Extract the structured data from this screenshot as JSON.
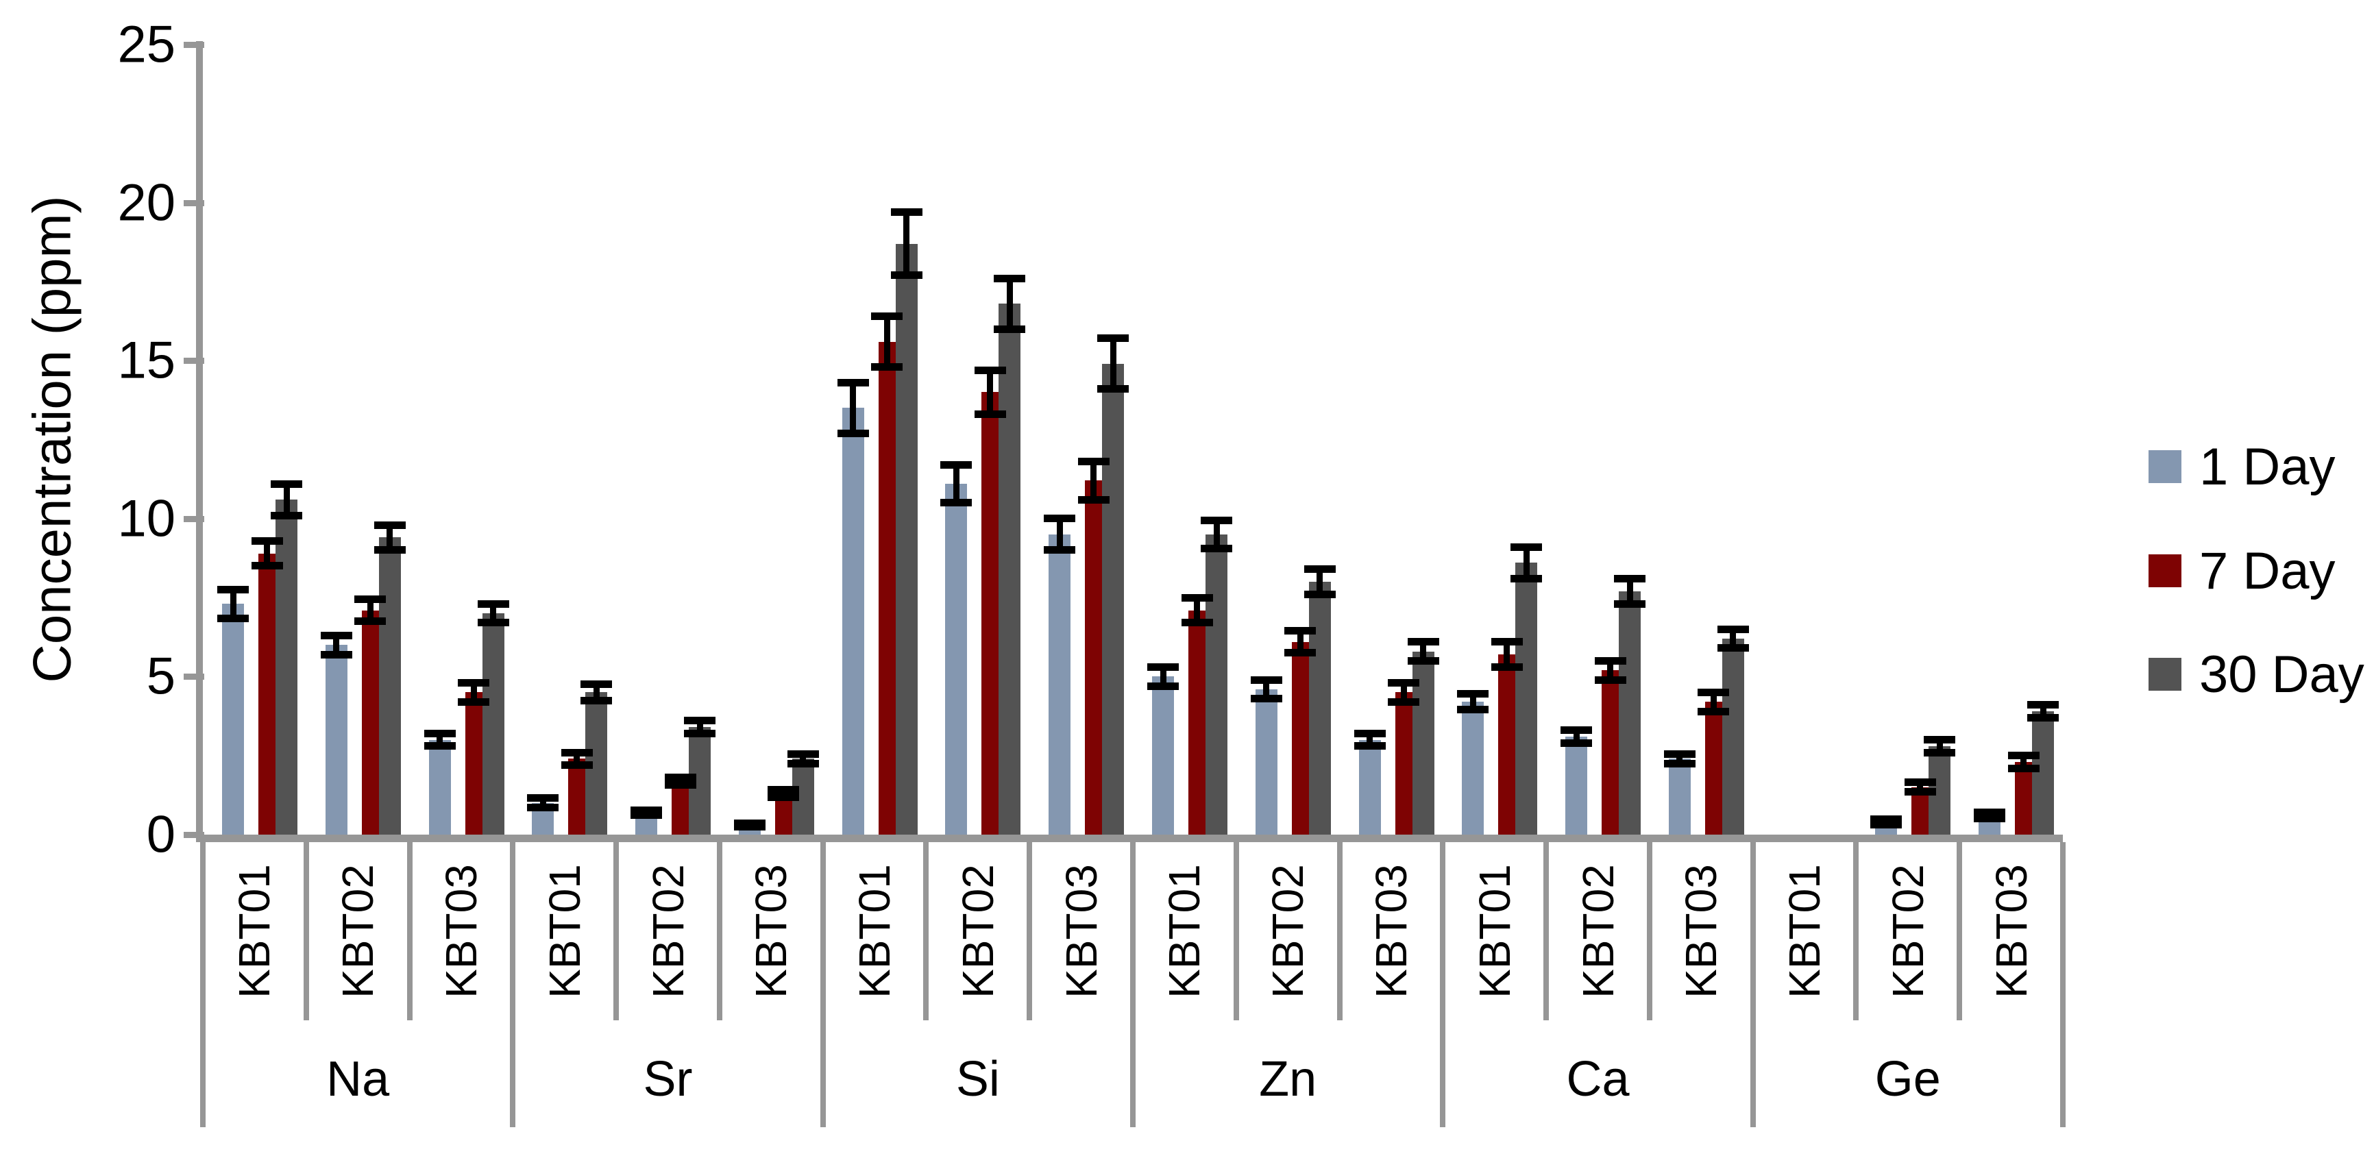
{
  "colors": {
    "axis": "#969696",
    "error_bar": "#000000",
    "background": "#FFFFFF",
    "text": "#000000"
  },
  "chart_data": {
    "type": "bar",
    "title": "",
    "xlabel": "",
    "ylabel": "Concentration (ppm)",
    "ylim": [
      0,
      25
    ],
    "yticks": [
      0,
      5,
      10,
      15,
      20,
      25
    ],
    "grid": false,
    "legend_position": "right-outside",
    "error_bars": true,
    "groups": [
      "Na",
      "Sr",
      "Si",
      "Zn",
      "Ca",
      "Ge"
    ],
    "subcategories": [
      "KBT01",
      "KBT02",
      "KBT03"
    ],
    "series": [
      {
        "name": "1 Day",
        "color": "#8497B0",
        "values": [
          [
            7.3,
            6.0,
            3.0
          ],
          [
            1.0,
            0.7,
            0.3
          ],
          [
            13.5,
            11.1,
            9.5
          ],
          [
            5.0,
            4.6,
            3.0
          ],
          [
            4.2,
            3.1,
            2.4
          ],
          [
            0,
            0.4,
            0.6
          ]
        ],
        "errors": [
          [
            0.45,
            0.3,
            0.2
          ],
          [
            0.15,
            0.08,
            0.05
          ],
          [
            0.8,
            0.6,
            0.5
          ],
          [
            0.3,
            0.3,
            0.2
          ],
          [
            0.25,
            0.2,
            0.15
          ],
          [
            0,
            0.08,
            0.1
          ]
        ]
      },
      {
        "name": "7 Day",
        "color": "#7E0303",
        "values": [
          [
            8.9,
            7.1,
            4.5
          ],
          [
            2.4,
            1.7,
            1.3
          ],
          [
            15.6,
            14.0,
            11.2
          ],
          [
            7.1,
            6.1,
            4.5
          ],
          [
            5.7,
            5.2,
            4.2
          ],
          [
            0,
            1.5,
            2.3
          ]
        ],
        "errors": [
          [
            0.4,
            0.35,
            0.3
          ],
          [
            0.2,
            0.12,
            0.12
          ],
          [
            0.8,
            0.7,
            0.6
          ],
          [
            0.4,
            0.35,
            0.3
          ],
          [
            0.4,
            0.3,
            0.3
          ],
          [
            0,
            0.15,
            0.2
          ]
        ]
      },
      {
        "name": "30 Day",
        "color": "#535353",
        "values": [
          [
            10.6,
            9.4,
            7.0
          ],
          [
            4.5,
            3.4,
            2.4
          ],
          [
            18.7,
            16.8,
            14.9
          ],
          [
            9.5,
            8.0,
            5.8
          ],
          [
            8.6,
            7.7,
            6.2
          ],
          [
            0,
            2.8,
            3.9
          ]
        ],
        "errors": [
          [
            0.5,
            0.4,
            0.3
          ],
          [
            0.27,
            0.2,
            0.15
          ],
          [
            1.0,
            0.8,
            0.8
          ],
          [
            0.45,
            0.4,
            0.3
          ],
          [
            0.5,
            0.4,
            0.3
          ],
          [
            0,
            0.2,
            0.2
          ]
        ]
      }
    ]
  }
}
